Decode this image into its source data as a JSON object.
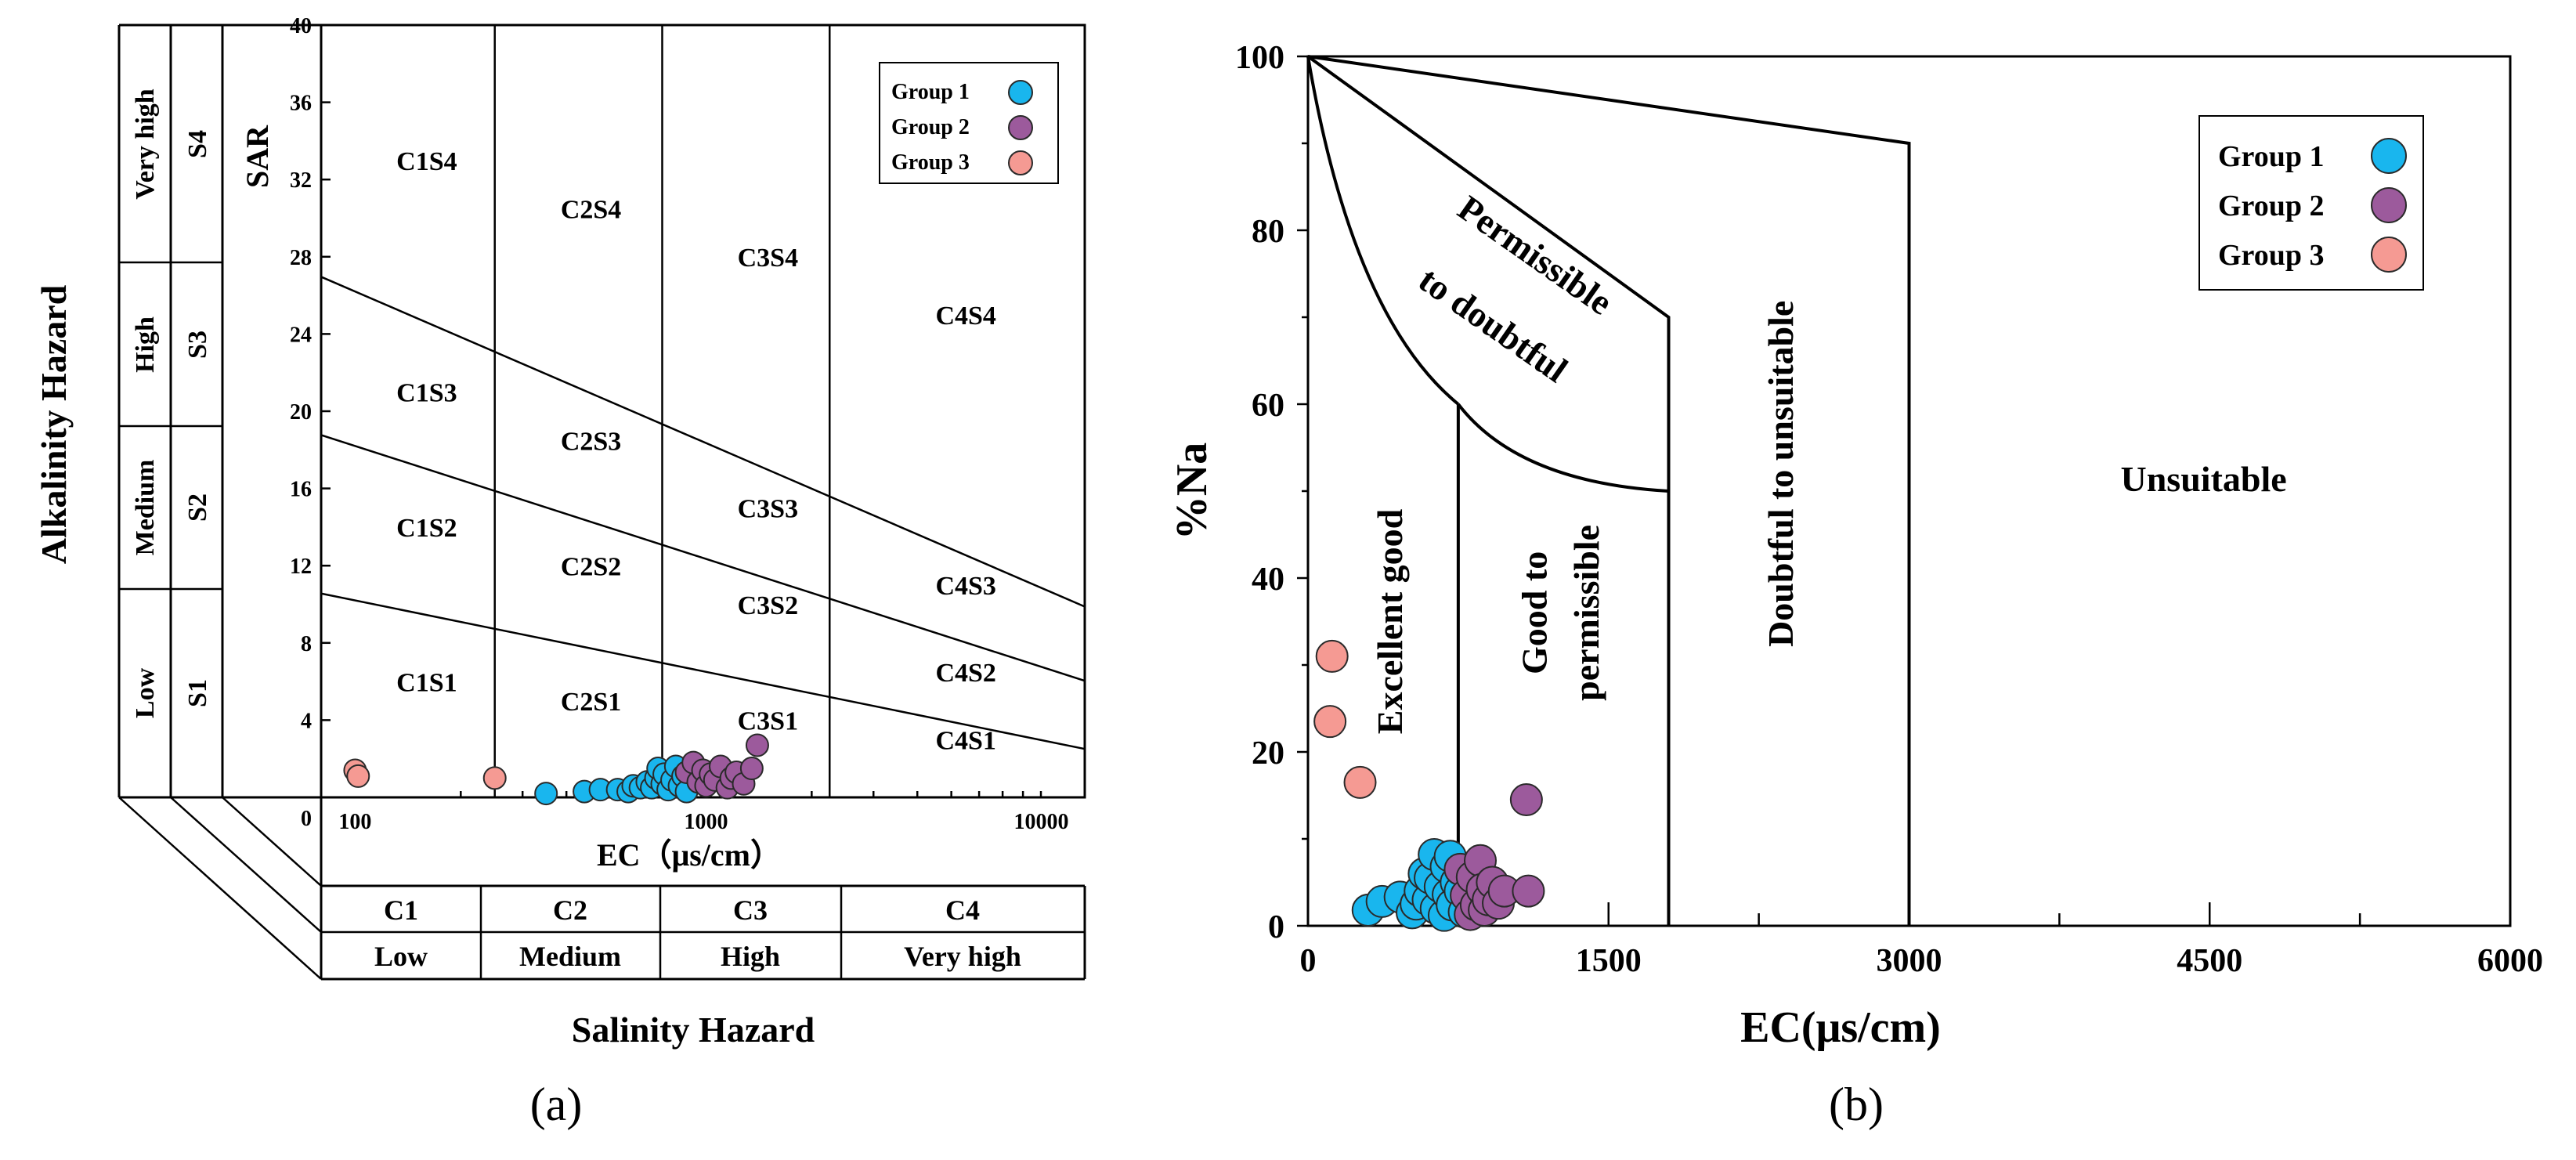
{
  "colors": {
    "group1": "#19B6EE",
    "group2": "#9C5A9C",
    "group3": "#F59A93"
  },
  "chart_data": [
    {
      "type": "scatter",
      "panel_label": "(a)",
      "title": "",
      "xlabel": "EC（μs/cm）",
      "ylabel": "SAR",
      "xscale": "log",
      "xlim": [
        80,
        12000
      ],
      "ylim": [
        0,
        40
      ],
      "x_ticks": [
        "100",
        "1000",
        "10000"
      ],
      "y_ticks": [
        "0",
        "4",
        "8",
        "12",
        "16",
        "20",
        "24",
        "28",
        "32",
        "36",
        "40"
      ],
      "side_title": "Alkalinity Hazard",
      "bottom_title": "Salinity Hazard",
      "alkalinity_classes": [
        {
          "code": "S4",
          "label": "Very high"
        },
        {
          "code": "S3",
          "label": "High"
        },
        {
          "code": "S2",
          "label": "Medium"
        },
        {
          "code": "S1",
          "label": "Low"
        }
      ],
      "salinity_classes": [
        {
          "code": "C1",
          "label": "Low"
        },
        {
          "code": "C2",
          "label": "Medium"
        },
        {
          "code": "C3",
          "label": "High"
        },
        {
          "code": "C4",
          "label": "Very high"
        }
      ],
      "ec_boundaries": [
        250,
        750,
        2250
      ],
      "sar_boundary_lines": [
        {
          "sar_at_100": 10.2,
          "sar_at_10000": 2.8
        },
        {
          "sar_at_100": 18.2,
          "sar_at_10000": 6.5
        },
        {
          "sar_at_100": 26.2,
          "sar_at_10000": 10.5
        }
      ],
      "region_labels": [
        {
          "text": "C1S4",
          "ec": 160,
          "sar": 32.5
        },
        {
          "text": "C2S4",
          "ec": 470,
          "sar": 30
        },
        {
          "text": "C3S4",
          "ec": 1500,
          "sar": 27.5
        },
        {
          "text": "C4S4",
          "ec": 5500,
          "sar": 24.5
        },
        {
          "text": "C1S3",
          "ec": 160,
          "sar": 20.5
        },
        {
          "text": "C2S3",
          "ec": 470,
          "sar": 18
        },
        {
          "text": "C3S3",
          "ec": 1500,
          "sar": 14.5
        },
        {
          "text": "C4S3",
          "ec": 5500,
          "sar": 10.5
        },
        {
          "text": "C1S2",
          "ec": 160,
          "sar": 13.5
        },
        {
          "text": "C2S2",
          "ec": 470,
          "sar": 11.5
        },
        {
          "text": "C3S2",
          "ec": 1500,
          "sar": 9.5
        },
        {
          "text": "C4S2",
          "ec": 5500,
          "sar": 6
        },
        {
          "text": "C1S1",
          "ec": 160,
          "sar": 5.5
        },
        {
          "text": "C2S1",
          "ec": 470,
          "sar": 4.5
        },
        {
          "text": "C3S1",
          "ec": 1500,
          "sar": 3.5
        },
        {
          "text": "C4S1",
          "ec": 5500,
          "sar": 2.5
        }
      ],
      "legend": {
        "position": "top-right",
        "entries": [
          "Group 1",
          "Group 2",
          "Group 3"
        ]
      },
      "series": [
        {
          "name": "Group 1",
          "color_key": "group1",
          "points": [
            [
              350,
              0.2
            ],
            [
              450,
              0.3
            ],
            [
              500,
              0.4
            ],
            [
              560,
              0.4
            ],
            [
              600,
              0.3
            ],
            [
              620,
              0.6
            ],
            [
              650,
              0.5
            ],
            [
              680,
              0.8
            ],
            [
              700,
              0.5
            ],
            [
              720,
              1.0
            ],
            [
              730,
              1.5
            ],
            [
              750,
              0.7
            ],
            [
              760,
              1.2
            ],
            [
              780,
              0.4
            ],
            [
              800,
              0.9
            ],
            [
              820,
              1.6
            ],
            [
              840,
              0.6
            ],
            [
              860,
              1.1
            ],
            [
              880,
              0.3
            ],
            [
              900,
              1.4
            ]
          ]
        },
        {
          "name": "Group 2",
          "color_key": "group2",
          "points": [
            [
              880,
              1.3
            ],
            [
              920,
              1.8
            ],
            [
              950,
              0.8
            ],
            [
              980,
              1.4
            ],
            [
              1000,
              0.6
            ],
            [
              1030,
              1.2
            ],
            [
              1060,
              0.9
            ],
            [
              1100,
              1.6
            ],
            [
              1150,
              0.5
            ],
            [
              1180,
              1.0
            ],
            [
              1220,
              1.3
            ],
            [
              1280,
              0.7
            ],
            [
              1350,
              1.5
            ],
            [
              1400,
              2.7
            ]
          ]
        },
        {
          "name": "Group 3",
          "color_key": "group3",
          "points": [
            [
              100,
              1.4
            ],
            [
              102,
              1.1
            ],
            [
              250,
              1.0
            ]
          ]
        }
      ]
    },
    {
      "type": "scatter",
      "panel_label": "(b)",
      "title": "",
      "xlabel": "EC(μs/cm)",
      "ylabel": "%Na",
      "xlim": [
        0,
        6000
      ],
      "ylim": [
        0,
        100
      ],
      "x_ticks": [
        "0",
        "1500",
        "3000",
        "4500",
        "6000"
      ],
      "y_ticks": [
        "0",
        "20",
        "40",
        "60",
        "80",
        "100"
      ],
      "region_labels": [
        {
          "text": "Excellent good",
          "ec": 470,
          "na": 35,
          "rotation": -90
        },
        {
          "text": "Good to",
          "ec": 1190,
          "na": 36,
          "rotation": -90
        },
        {
          "text": "permissible",
          "ec": 1450,
          "na": 36,
          "rotation": -90
        },
        {
          "text": "Doubtful to unsuitable",
          "ec": 2420,
          "na": 52,
          "rotation": -90
        },
        {
          "text": "Permissible",
          "ec": 1100,
          "na": 76,
          "rotation": 35
        },
        {
          "text": "to doubtful",
          "ec": 890,
          "na": 68,
          "rotation": 35
        },
        {
          "text": "Unsuitable",
          "ec": 4470,
          "na": 50,
          "rotation": 0
        }
      ],
      "legend": {
        "position": "top-right",
        "entries": [
          "Group 1",
          "Group 2",
          "Group 3"
        ]
      },
      "series": [
        {
          "name": "Group 1",
          "color_key": "group1",
          "points": [
            [
              300,
              1.8
            ],
            [
              370,
              2.8
            ],
            [
              460,
              3.3
            ],
            [
              520,
              1.5
            ],
            [
              540,
              2.5
            ],
            [
              560,
              4.0
            ],
            [
              580,
              6.0
            ],
            [
              600,
              3.0
            ],
            [
              610,
              5.5
            ],
            [
              630,
              8.2
            ],
            [
              640,
              2.0
            ],
            [
              660,
              4.5
            ],
            [
              680,
              1.2
            ],
            [
              690,
              6.8
            ],
            [
              700,
              3.6
            ],
            [
              710,
              8.0
            ],
            [
              720,
              2.4
            ],
            [
              740,
              5.0
            ],
            [
              760,
              4.0
            ],
            [
              780,
              1.6
            ]
          ]
        },
        {
          "name": "Group 2",
          "color_key": "group2",
          "points": [
            [
              760,
              6.5
            ],
            [
              790,
              3.5
            ],
            [
              810,
              1.3
            ],
            [
              820,
              5.6
            ],
            [
              840,
              2.4
            ],
            [
              860,
              7.5
            ],
            [
              870,
              4.2
            ],
            [
              880,
              1.8
            ],
            [
              900,
              3.0
            ],
            [
              920,
              5.0
            ],
            [
              950,
              2.6
            ],
            [
              980,
              4.0
            ],
            [
              1100,
              4.0
            ],
            [
              1090,
              14.5
            ]
          ]
        },
        {
          "name": "Group 3",
          "color_key": "group3",
          "points": [
            [
              120,
              31
            ],
            [
              110,
              23.5
            ],
            [
              260,
              16.5
            ]
          ]
        }
      ]
    }
  ]
}
